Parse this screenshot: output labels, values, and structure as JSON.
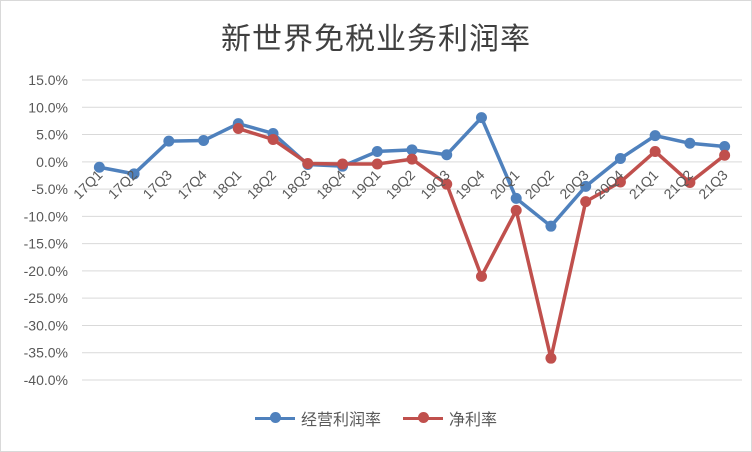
{
  "chart_data": {
    "type": "line",
    "title": "新世界免税业务利润率",
    "categories": [
      "17Q1",
      "17Q2",
      "17Q3",
      "17Q4",
      "18Q1",
      "18Q2",
      "18Q3",
      "18Q4",
      "19Q1",
      "19Q2",
      "19Q3",
      "19Q4",
      "20Q1",
      "20Q2",
      "20Q3",
      "20Q4",
      "21Q1",
      "21Q2",
      "21Q3"
    ],
    "y_tick_labels": [
      "15.0%",
      "10.0%",
      "5.0%",
      "0.0%",
      "-5.0%",
      "-10.0%",
      "-15.0%",
      "-20.0%",
      "-25.0%",
      "-30.0%",
      "-35.0%",
      "-40.0%"
    ],
    "ylim": [
      -40,
      15
    ],
    "y_unit": "%",
    "grid": true,
    "legend_position": "bottom",
    "series": [
      {
        "name": "经营利润率",
        "color": "#4f81bd",
        "values": [
          -1.0,
          -2.2,
          3.8,
          3.9,
          7.0,
          5.2,
          -0.5,
          -0.8,
          1.9,
          2.2,
          1.3,
          8.1,
          -6.7,
          -11.8,
          -4.5,
          0.6,
          4.8,
          3.4,
          2.8
        ]
      },
      {
        "name": "净利率",
        "color": "#c0504d",
        "values": [
          null,
          null,
          null,
          null,
          6.1,
          4.1,
          -0.3,
          -0.4,
          -0.4,
          0.5,
          -4.1,
          -21.0,
          -8.9,
          -36.0,
          -7.3,
          -3.7,
          1.9,
          -3.8,
          1.2
        ]
      }
    ]
  }
}
